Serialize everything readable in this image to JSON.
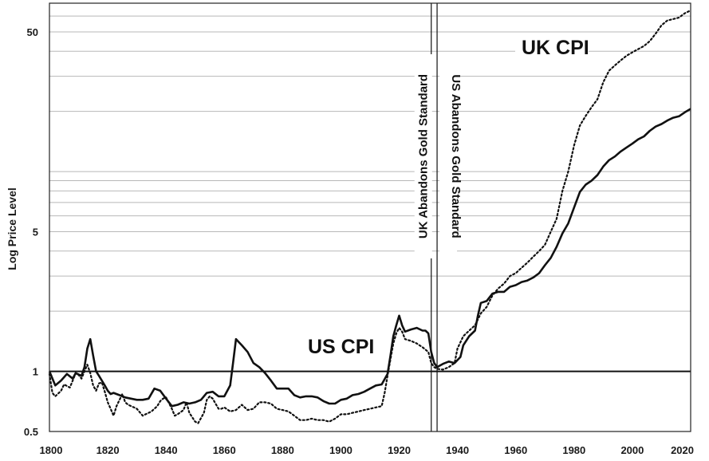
{
  "chart_data": {
    "type": "line",
    "scale": "log",
    "ylabel": "Log Price Level",
    "xlabel": "",
    "xlim": [
      1800,
      2020
    ],
    "ylim": [
      0.5,
      70
    ],
    "x_ticks": [
      "1800",
      "1820",
      "1840",
      "1860",
      "1880",
      "1900",
      "1920",
      "1940",
      "1960",
      "1980",
      "2000",
      "2020"
    ],
    "y_ticks": [
      {
        "value": 0.5,
        "label": "0.5"
      },
      {
        "value": 1,
        "label": "1"
      },
      {
        "value": 5,
        "label": "5"
      },
      {
        "value": 50,
        "label": "50"
      }
    ],
    "minor_gridlines": [
      2,
      3,
      4,
      6,
      7,
      8,
      9,
      10,
      20,
      30,
      40,
      60,
      70
    ],
    "reference_line": 1,
    "events": [
      {
        "year": 1931,
        "label": "UK Abandons  Gold Standard"
      },
      {
        "year": 1933,
        "label": "US Abandons Gold Standard"
      }
    ],
    "series_labels": [
      {
        "name": "US CPI",
        "text": "US CPI"
      },
      {
        "name": "UK CPI",
        "text": "UK CPI"
      }
    ],
    "series": [
      {
        "name": "US CPI",
        "style": "solid",
        "points": [
          [
            1800,
            1.0
          ],
          [
            1802,
            0.85
          ],
          [
            1804,
            0.9
          ],
          [
            1806,
            0.97
          ],
          [
            1808,
            0.92
          ],
          [
            1809,
            0.98
          ],
          [
            1811,
            0.95
          ],
          [
            1812,
            1.05
          ],
          [
            1813,
            1.3
          ],
          [
            1814,
            1.45
          ],
          [
            1815,
            1.2
          ],
          [
            1816,
            1.0
          ],
          [
            1817,
            0.95
          ],
          [
            1819,
            0.85
          ],
          [
            1820,
            0.8
          ],
          [
            1821,
            0.77
          ],
          [
            1822,
            0.78
          ],
          [
            1824,
            0.76
          ],
          [
            1826,
            0.74
          ],
          [
            1828,
            0.73
          ],
          [
            1830,
            0.72
          ],
          [
            1832,
            0.72
          ],
          [
            1834,
            0.73
          ],
          [
            1836,
            0.82
          ],
          [
            1838,
            0.8
          ],
          [
            1840,
            0.73
          ],
          [
            1842,
            0.67
          ],
          [
            1844,
            0.68
          ],
          [
            1846,
            0.7
          ],
          [
            1848,
            0.69
          ],
          [
            1850,
            0.7
          ],
          [
            1852,
            0.72
          ],
          [
            1854,
            0.78
          ],
          [
            1856,
            0.79
          ],
          [
            1858,
            0.75
          ],
          [
            1860,
            0.75
          ],
          [
            1862,
            0.85
          ],
          [
            1863,
            1.1
          ],
          [
            1864,
            1.45
          ],
          [
            1865,
            1.4
          ],
          [
            1866,
            1.35
          ],
          [
            1868,
            1.25
          ],
          [
            1870,
            1.1
          ],
          [
            1872,
            1.05
          ],
          [
            1874,
            0.98
          ],
          [
            1876,
            0.9
          ],
          [
            1878,
            0.82
          ],
          [
            1880,
            0.82
          ],
          [
            1882,
            0.82
          ],
          [
            1884,
            0.76
          ],
          [
            1886,
            0.74
          ],
          [
            1888,
            0.75
          ],
          [
            1890,
            0.75
          ],
          [
            1892,
            0.74
          ],
          [
            1894,
            0.71
          ],
          [
            1896,
            0.69
          ],
          [
            1898,
            0.69
          ],
          [
            1900,
            0.72
          ],
          [
            1902,
            0.73
          ],
          [
            1904,
            0.76
          ],
          [
            1906,
            0.77
          ],
          [
            1908,
            0.79
          ],
          [
            1910,
            0.82
          ],
          [
            1912,
            0.85
          ],
          [
            1914,
            0.86
          ],
          [
            1916,
            0.97
          ],
          [
            1917,
            1.2
          ],
          [
            1918,
            1.5
          ],
          [
            1919,
            1.7
          ],
          [
            1920,
            1.9
          ],
          [
            1921,
            1.7
          ],
          [
            1922,
            1.58
          ],
          [
            1924,
            1.62
          ],
          [
            1926,
            1.65
          ],
          [
            1928,
            1.6
          ],
          [
            1929,
            1.6
          ],
          [
            1930,
            1.55
          ],
          [
            1931,
            1.25
          ],
          [
            1932,
            1.1
          ],
          [
            1933,
            1.05
          ],
          [
            1935,
            1.09
          ],
          [
            1937,
            1.12
          ],
          [
            1939,
            1.1
          ],
          [
            1941,
            1.18
          ],
          [
            1942,
            1.35
          ],
          [
            1944,
            1.5
          ],
          [
            1946,
            1.6
          ],
          [
            1947,
            1.9
          ],
          [
            1948,
            2.2
          ],
          [
            1950,
            2.25
          ],
          [
            1952,
            2.45
          ],
          [
            1954,
            2.5
          ],
          [
            1956,
            2.5
          ],
          [
            1958,
            2.65
          ],
          [
            1960,
            2.7
          ],
          [
            1962,
            2.8
          ],
          [
            1964,
            2.85
          ],
          [
            1966,
            2.95
          ],
          [
            1968,
            3.1
          ],
          [
            1970,
            3.4
          ],
          [
            1972,
            3.7
          ],
          [
            1974,
            4.2
          ],
          [
            1976,
            4.9
          ],
          [
            1978,
            5.5
          ],
          [
            1980,
            6.6
          ],
          [
            1982,
            7.9
          ],
          [
            1984,
            8.6
          ],
          [
            1986,
            9.0
          ],
          [
            1988,
            9.6
          ],
          [
            1990,
            10.6
          ],
          [
            1992,
            11.4
          ],
          [
            1994,
            11.9
          ],
          [
            1996,
            12.6
          ],
          [
            1998,
            13.2
          ],
          [
            2000,
            13.8
          ],
          [
            2002,
            14.5
          ],
          [
            2004,
            15.0
          ],
          [
            2006,
            16.0
          ],
          [
            2008,
            16.8
          ],
          [
            2010,
            17.3
          ],
          [
            2012,
            18.0
          ],
          [
            2014,
            18.6
          ],
          [
            2016,
            18.9
          ],
          [
            2018,
            19.8
          ],
          [
            2020,
            20.6
          ]
        ]
      },
      {
        "name": "UK CPI",
        "style": "dotted",
        "points": [
          [
            1800,
            0.97
          ],
          [
            1801,
            0.78
          ],
          [
            1802,
            0.75
          ],
          [
            1804,
            0.8
          ],
          [
            1805,
            0.86
          ],
          [
            1807,
            0.83
          ],
          [
            1808,
            0.9
          ],
          [
            1809,
            0.98
          ],
          [
            1810,
            0.96
          ],
          [
            1811,
            0.92
          ],
          [
            1812,
            1.0
          ],
          [
            1813,
            1.08
          ],
          [
            1814,
            0.98
          ],
          [
            1815,
            0.85
          ],
          [
            1816,
            0.8
          ],
          [
            1817,
            0.87
          ],
          [
            1818,
            0.88
          ],
          [
            1819,
            0.79
          ],
          [
            1820,
            0.7
          ],
          [
            1821,
            0.65
          ],
          [
            1822,
            0.6
          ],
          [
            1823,
            0.67
          ],
          [
            1825,
            0.77
          ],
          [
            1826,
            0.7
          ],
          [
            1827,
            0.68
          ],
          [
            1828,
            0.67
          ],
          [
            1829,
            0.66
          ],
          [
            1830,
            0.65
          ],
          [
            1832,
            0.6
          ],
          [
            1833,
            0.61
          ],
          [
            1835,
            0.63
          ],
          [
            1837,
            0.67
          ],
          [
            1838,
            0.71
          ],
          [
            1839,
            0.73
          ],
          [
            1840,
            0.74
          ],
          [
            1842,
            0.65
          ],
          [
            1843,
            0.6
          ],
          [
            1844,
            0.61
          ],
          [
            1846,
            0.64
          ],
          [
            1847,
            0.7
          ],
          [
            1848,
            0.62
          ],
          [
            1850,
            0.56
          ],
          [
            1851,
            0.55
          ],
          [
            1853,
            0.62
          ],
          [
            1854,
            0.72
          ],
          [
            1855,
            0.75
          ],
          [
            1856,
            0.73
          ],
          [
            1858,
            0.65
          ],
          [
            1859,
            0.65
          ],
          [
            1860,
            0.66
          ],
          [
            1862,
            0.63
          ],
          [
            1864,
            0.64
          ],
          [
            1866,
            0.68
          ],
          [
            1868,
            0.64
          ],
          [
            1870,
            0.65
          ],
          [
            1872,
            0.7
          ],
          [
            1874,
            0.7
          ],
          [
            1876,
            0.69
          ],
          [
            1878,
            0.65
          ],
          [
            1880,
            0.64
          ],
          [
            1882,
            0.63
          ],
          [
            1884,
            0.6
          ],
          [
            1886,
            0.57
          ],
          [
            1888,
            0.57
          ],
          [
            1890,
            0.58
          ],
          [
            1892,
            0.57
          ],
          [
            1894,
            0.57
          ],
          [
            1896,
            0.56
          ],
          [
            1898,
            0.58
          ],
          [
            1900,
            0.61
          ],
          [
            1902,
            0.61
          ],
          [
            1904,
            0.62
          ],
          [
            1906,
            0.63
          ],
          [
            1908,
            0.64
          ],
          [
            1910,
            0.65
          ],
          [
            1912,
            0.66
          ],
          [
            1914,
            0.67
          ],
          [
            1915,
            0.78
          ],
          [
            1916,
            0.95
          ],
          [
            1917,
            1.15
          ],
          [
            1918,
            1.38
          ],
          [
            1919,
            1.55
          ],
          [
            1920,
            1.65
          ],
          [
            1921,
            1.58
          ],
          [
            1922,
            1.45
          ],
          [
            1924,
            1.42
          ],
          [
            1926,
            1.38
          ],
          [
            1928,
            1.32
          ],
          [
            1930,
            1.25
          ],
          [
            1931,
            1.1
          ],
          [
            1932,
            1.05
          ],
          [
            1933,
            1.03
          ],
          [
            1935,
            1.02
          ],
          [
            1937,
            1.05
          ],
          [
            1939,
            1.1
          ],
          [
            1940,
            1.3
          ],
          [
            1942,
            1.5
          ],
          [
            1944,
            1.6
          ],
          [
            1946,
            1.7
          ],
          [
            1948,
            1.95
          ],
          [
            1950,
            2.1
          ],
          [
            1952,
            2.4
          ],
          [
            1954,
            2.6
          ],
          [
            1956,
            2.75
          ],
          [
            1958,
            3.0
          ],
          [
            1960,
            3.1
          ],
          [
            1962,
            3.3
          ],
          [
            1964,
            3.5
          ],
          [
            1966,
            3.75
          ],
          [
            1968,
            4.0
          ],
          [
            1970,
            4.3
          ],
          [
            1972,
            5.0
          ],
          [
            1974,
            5.8
          ],
          [
            1976,
            8.0
          ],
          [
            1978,
            10.0
          ],
          [
            1980,
            13.5
          ],
          [
            1982,
            17.0
          ],
          [
            1984,
            19.0
          ],
          [
            1986,
            21.0
          ],
          [
            1988,
            23.0
          ],
          [
            1990,
            28.0
          ],
          [
            1992,
            32.0
          ],
          [
            1994,
            34.0
          ],
          [
            1996,
            36.0
          ],
          [
            1998,
            38.0
          ],
          [
            2000,
            39.5
          ],
          [
            2002,
            41.0
          ],
          [
            2004,
            42.5
          ],
          [
            2006,
            45.0
          ],
          [
            2008,
            49.0
          ],
          [
            2010,
            54.0
          ],
          [
            2012,
            57.0
          ],
          [
            2014,
            58.0
          ],
          [
            2016,
            59.0
          ],
          [
            2018,
            62.0
          ],
          [
            2020,
            64.0
          ]
        ]
      }
    ]
  }
}
